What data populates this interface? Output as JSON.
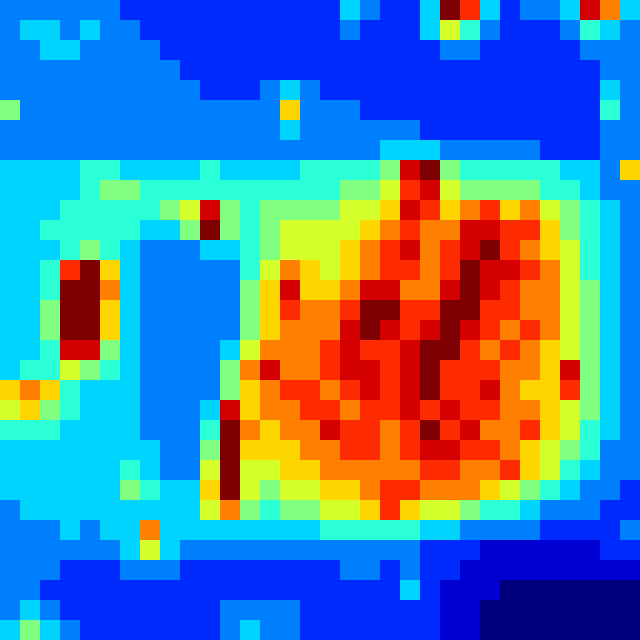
{
  "chart_data": {
    "type": "heatmap",
    "tick_labels": false,
    "cells": [
      [
        3,
        3,
        3,
        3,
        3,
        3,
        2,
        2,
        2,
        2,
        2,
        2,
        2,
        2,
        2,
        2,
        2,
        4,
        3,
        2,
        2,
        4,
        12,
        10,
        4,
        2,
        3,
        3,
        4,
        11,
        9,
        4
      ],
      [
        3,
        4,
        4,
        3,
        4,
        3,
        3,
        2,
        2,
        2,
        2,
        2,
        2,
        2,
        2,
        2,
        2,
        3,
        2,
        2,
        2,
        4,
        7,
        5,
        3,
        2,
        2,
        2,
        3,
        5,
        4,
        3
      ],
      [
        3,
        3,
        4,
        4,
        3,
        3,
        3,
        3,
        2,
        2,
        2,
        2,
        2,
        2,
        2,
        2,
        2,
        2,
        2,
        2,
        2,
        2,
        3,
        3,
        2,
        2,
        2,
        2,
        2,
        3,
        3,
        3
      ],
      [
        3,
        3,
        3,
        3,
        3,
        3,
        3,
        3,
        3,
        2,
        2,
        2,
        2,
        2,
        2,
        2,
        2,
        2,
        2,
        2,
        2,
        2,
        2,
        2,
        2,
        2,
        2,
        2,
        2,
        2,
        3,
        3
      ],
      [
        3,
        3,
        3,
        3,
        3,
        3,
        3,
        3,
        3,
        3,
        2,
        2,
        2,
        3,
        4,
        3,
        2,
        2,
        2,
        2,
        2,
        2,
        2,
        2,
        2,
        2,
        2,
        2,
        2,
        2,
        4,
        3
      ],
      [
        6,
        3,
        3,
        3,
        3,
        3,
        3,
        3,
        3,
        3,
        3,
        3,
        3,
        3,
        8,
        3,
        3,
        3,
        2,
        2,
        2,
        2,
        2,
        2,
        2,
        2,
        2,
        2,
        2,
        2,
        5,
        3
      ],
      [
        3,
        3,
        3,
        3,
        3,
        3,
        3,
        3,
        3,
        3,
        3,
        3,
        3,
        3,
        4,
        3,
        3,
        3,
        3,
        3,
        3,
        2,
        2,
        2,
        2,
        2,
        2,
        2,
        2,
        2,
        3,
        3
      ],
      [
        3,
        3,
        3,
        3,
        3,
        3,
        3,
        3,
        3,
        3,
        3,
        3,
        3,
        3,
        3,
        3,
        3,
        3,
        3,
        4,
        4,
        4,
        3,
        3,
        3,
        3,
        3,
        2,
        2,
        2,
        3,
        3
      ],
      [
        4,
        4,
        4,
        4,
        5,
        5,
        4,
        4,
        4,
        4,
        5,
        4,
        4,
        4,
        4,
        5,
        5,
        5,
        5,
        6,
        11,
        12,
        6,
        5,
        5,
        5,
        5,
        5,
        4,
        4,
        3,
        8
      ],
      [
        4,
        4,
        4,
        4,
        5,
        6,
        6,
        5,
        5,
        5,
        5,
        5,
        5,
        5,
        5,
        5,
        5,
        6,
        6,
        7,
        10,
        11,
        7,
        6,
        6,
        6,
        6,
        5,
        5,
        4,
        3,
        3
      ],
      [
        4,
        4,
        4,
        5,
        5,
        5,
        5,
        5,
        6,
        7,
        11,
        6,
        5,
        6,
        6,
        6,
        6,
        7,
        7,
        8,
        11,
        10,
        8,
        9,
        10,
        8,
        9,
        7,
        6,
        5,
        4,
        3
      ],
      [
        4,
        4,
        5,
        5,
        5,
        5,
        5,
        4,
        4,
        6,
        12,
        6,
        5,
        6,
        7,
        7,
        7,
        7,
        8,
        9,
        10,
        9,
        9,
        11,
        11,
        10,
        10,
        8,
        6,
        5,
        4,
        3
      ],
      [
        4,
        4,
        4,
        5,
        6,
        5,
        4,
        3,
        3,
        3,
        4,
        4,
        5,
        6,
        7,
        7,
        7,
        8,
        9,
        10,
        11,
        9,
        10,
        11,
        12,
        10,
        9,
        8,
        7,
        5,
        4,
        3
      ],
      [
        4,
        4,
        5,
        10,
        12,
        8,
        4,
        3,
        3,
        3,
        3,
        3,
        5,
        7,
        9,
        8,
        7,
        8,
        9,
        10,
        10,
        9,
        10,
        12,
        11,
        11,
        10,
        9,
        7,
        5,
        4,
        3
      ],
      [
        4,
        4,
        5,
        12,
        12,
        9,
        4,
        3,
        3,
        3,
        3,
        3,
        6,
        8,
        11,
        8,
        8,
        9,
        11,
        11,
        9,
        9,
        11,
        12,
        11,
        10,
        9,
        9,
        7,
        6,
        4,
        3
      ],
      [
        4,
        4,
        6,
        12,
        12,
        8,
        4,
        3,
        3,
        3,
        3,
        3,
        6,
        8,
        10,
        9,
        9,
        10,
        12,
        12,
        10,
        10,
        12,
        12,
        10,
        10,
        9,
        9,
        7,
        6,
        4,
        3
      ],
      [
        4,
        4,
        6,
        12,
        12,
        8,
        4,
        3,
        3,
        3,
        3,
        3,
        6,
        8,
        9,
        9,
        9,
        11,
        12,
        11,
        10,
        11,
        12,
        11,
        10,
        9,
        10,
        9,
        7,
        6,
        4,
        3
      ],
      [
        4,
        4,
        5,
        11,
        11,
        6,
        4,
        3,
        3,
        3,
        3,
        4,
        7,
        9,
        9,
        9,
        10,
        11,
        10,
        10,
        11,
        12,
        12,
        10,
        9,
        10,
        9,
        8,
        7,
        6,
        4,
        3
      ],
      [
        4,
        5,
        5,
        7,
        6,
        5,
        4,
        3,
        3,
        3,
        3,
        6,
        9,
        11,
        9,
        9,
        10,
        11,
        11,
        10,
        11,
        12,
        10,
        10,
        10,
        9,
        9,
        8,
        11,
        6,
        4,
        3
      ],
      [
        8,
        9,
        8,
        5,
        4,
        4,
        4,
        3,
        3,
        3,
        3,
        6,
        8,
        9,
        10,
        10,
        9,
        10,
        11,
        10,
        11,
        12,
        10,
        10,
        11,
        9,
        8,
        8,
        10,
        6,
        4,
        3
      ],
      [
        7,
        8,
        6,
        5,
        4,
        4,
        4,
        3,
        3,
        3,
        4,
        11,
        8,
        9,
        9,
        10,
        10,
        9,
        10,
        10,
        11,
        10,
        11,
        10,
        10,
        9,
        9,
        8,
        7,
        6,
        4,
        3
      ],
      [
        5,
        5,
        5,
        4,
        4,
        4,
        4,
        3,
        3,
        3,
        5,
        12,
        9,
        8,
        9,
        9,
        11,
        10,
        10,
        9,
        10,
        12,
        10,
        11,
        9,
        9,
        10,
        8,
        7,
        5,
        4,
        3
      ],
      [
        4,
        4,
        4,
        4,
        4,
        4,
        4,
        4,
        3,
        3,
        6,
        12,
        8,
        8,
        8,
        9,
        9,
        10,
        10,
        9,
        10,
        11,
        11,
        10,
        10,
        9,
        8,
        7,
        6,
        5,
        3,
        3
      ],
      [
        4,
        4,
        4,
        4,
        4,
        4,
        5,
        4,
        3,
        3,
        7,
        12,
        7,
        7,
        8,
        8,
        9,
        9,
        9,
        9,
        9,
        10,
        10,
        9,
        9,
        10,
        8,
        7,
        5,
        4,
        3,
        3
      ],
      [
        4,
        4,
        4,
        4,
        4,
        4,
        6,
        5,
        4,
        4,
        8,
        12,
        7,
        6,
        7,
        7,
        8,
        8,
        9,
        10,
        10,
        9,
        9,
        9,
        8,
        7,
        6,
        5,
        4,
        3,
        3,
        2
      ],
      [
        3,
        4,
        4,
        4,
        4,
        4,
        4,
        4,
        4,
        4,
        7,
        9,
        6,
        5,
        6,
        6,
        7,
        7,
        8,
        10,
        8,
        7,
        7,
        6,
        5,
        5,
        4,
        3,
        3,
        3,
        2,
        2
      ],
      [
        3,
        3,
        3,
        4,
        3,
        4,
        4,
        9,
        4,
        4,
        4,
        4,
        4,
        4,
        4,
        4,
        5,
        5,
        5,
        5,
        5,
        4,
        4,
        3,
        3,
        3,
        3,
        2,
        2,
        2,
        2,
        3
      ],
      [
        3,
        3,
        3,
        3,
        3,
        3,
        4,
        7,
        4,
        3,
        3,
        3,
        3,
        3,
        3,
        3,
        3,
        3,
        3,
        3,
        3,
        2,
        2,
        2,
        1,
        1,
        1,
        1,
        1,
        1,
        2,
        2
      ],
      [
        3,
        3,
        3,
        2,
        2,
        2,
        3,
        3,
        3,
        2,
        2,
        2,
        2,
        2,
        2,
        2,
        2,
        3,
        3,
        2,
        3,
        2,
        2,
        1,
        1,
        1,
        1,
        1,
        1,
        1,
        1,
        1
      ],
      [
        3,
        3,
        2,
        2,
        2,
        2,
        2,
        2,
        2,
        2,
        2,
        2,
        2,
        2,
        2,
        2,
        2,
        2,
        2,
        2,
        4,
        2,
        1,
        1,
        1,
        0,
        0,
        0,
        0,
        0,
        0,
        0
      ],
      [
        3,
        4,
        3,
        2,
        2,
        2,
        2,
        2,
        2,
        2,
        2,
        3,
        3,
        3,
        3,
        2,
        2,
        2,
        2,
        2,
        2,
        2,
        1,
        1,
        0,
        0,
        0,
        0,
        0,
        0,
        0,
        0
      ],
      [
        4,
        6,
        4,
        3,
        2,
        2,
        2,
        2,
        2,
        2,
        2,
        3,
        4,
        3,
        3,
        2,
        2,
        2,
        2,
        2,
        2,
        2,
        1,
        1,
        0,
        0,
        0,
        0,
        0,
        0,
        0,
        0
      ]
    ]
  }
}
